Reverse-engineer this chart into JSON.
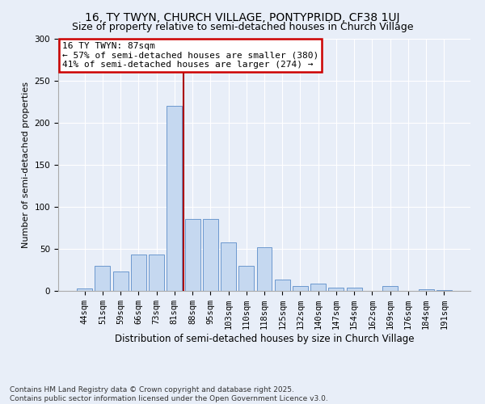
{
  "title": "16, TY TWYN, CHURCH VILLAGE, PONTYPRIDD, CF38 1UJ",
  "subtitle": "Size of property relative to semi-detached houses in Church Village",
  "xlabel": "Distribution of semi-detached houses by size in Church Village",
  "ylabel": "Number of semi-detached properties",
  "categories": [
    "44sqm",
    "51sqm",
    "59sqm",
    "66sqm",
    "73sqm",
    "81sqm",
    "88sqm",
    "95sqm",
    "103sqm",
    "110sqm",
    "118sqm",
    "125sqm",
    "132sqm",
    "140sqm",
    "147sqm",
    "154sqm",
    "162sqm",
    "169sqm",
    "176sqm",
    "184sqm",
    "191sqm"
  ],
  "values": [
    3,
    30,
    23,
    43,
    43,
    220,
    85,
    85,
    58,
    30,
    52,
    13,
    6,
    9,
    4,
    4,
    0,
    6,
    0,
    2,
    1
  ],
  "bar_color": "#c5d8f0",
  "bar_edge_color": "#5b8dc8",
  "property_line_index": 5.5,
  "property_size": "87sqm",
  "property_name": "16 TY TWYN",
  "pct_smaller": 57,
  "count_smaller": 380,
  "pct_larger": 41,
  "count_larger": 274,
  "annotation_box_color": "#cc0000",
  "line_color": "#aa0000",
  "ylim": [
    0,
    300
  ],
  "yticks": [
    0,
    50,
    100,
    150,
    200,
    250,
    300
  ],
  "title_fontsize": 10,
  "subtitle_fontsize": 9,
  "xlabel_fontsize": 8.5,
  "ylabel_fontsize": 8,
  "tick_fontsize": 7.5,
  "ann_fontsize": 8,
  "footer_text": "Contains HM Land Registry data © Crown copyright and database right 2025.\nContains public sector information licensed under the Open Government Licence v3.0.",
  "bg_color": "#e8eef8",
  "plot_bg_color": "#e8eef8"
}
